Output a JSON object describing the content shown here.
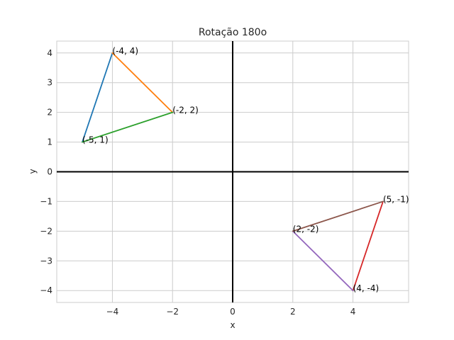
{
  "chart_data": {
    "type": "line",
    "title": "Rotação 180o",
    "xlabel": "x",
    "ylabel": "y",
    "xlim": [
      -5.85,
      5.85
    ],
    "ylim": [
      -4.4,
      4.4
    ],
    "grid": true,
    "x_ticks": [
      -4,
      -2,
      0,
      2,
      4
    ],
    "y_ticks": [
      -4,
      -3,
      -2,
      -1,
      0,
      1,
      2,
      3,
      4
    ],
    "x_tick_labels": [
      "−4",
      "−2",
      "0",
      "2",
      "4"
    ],
    "y_tick_labels": [
      "−4",
      "−3",
      "−2",
      "−1",
      "0",
      "1",
      "2",
      "3",
      "4"
    ],
    "axes_lines": {
      "color": "#000000"
    },
    "segments": [
      {
        "from": [
          -5,
          1
        ],
        "to": [
          -4,
          4
        ],
        "color": "#1f77b4"
      },
      {
        "from": [
          -4,
          4
        ],
        "to": [
          -2,
          2
        ],
        "color": "#ff7f0e"
      },
      {
        "from": [
          -2,
          2
        ],
        "to": [
          -5,
          1
        ],
        "color": "#2ca02c"
      },
      {
        "from": [
          5,
          -1
        ],
        "to": [
          4,
          -4
        ],
        "color": "#d62728"
      },
      {
        "from": [
          4,
          -4
        ],
        "to": [
          2,
          -2
        ],
        "color": "#9467bd"
      },
      {
        "from": [
          2,
          -2
        ],
        "to": [
          5,
          -1
        ],
        "color": "#8c564b"
      }
    ],
    "annotations": [
      {
        "x": -4,
        "y": 4,
        "text": "(-4, 4)"
      },
      {
        "x": -2,
        "y": 2,
        "text": "(-2, 2)"
      },
      {
        "x": -5,
        "y": 1,
        "text": "(-5, 1)"
      },
      {
        "x": 5,
        "y": -1,
        "text": "(5, -1)"
      },
      {
        "x": 2,
        "y": -2,
        "text": "(2, -2)"
      },
      {
        "x": 4,
        "y": -4,
        "text": "(4, -4)"
      }
    ]
  }
}
